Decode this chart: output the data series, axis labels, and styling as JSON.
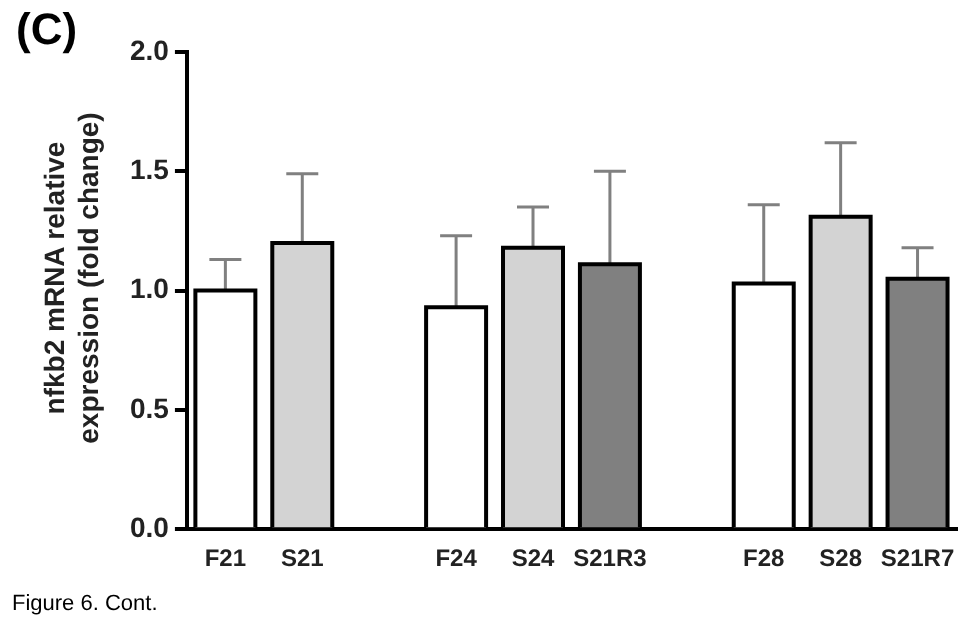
{
  "chart_data": {
    "type": "bar",
    "title": "(C)",
    "ylabel": "nfkb2 mRNA relative expression (fold change)",
    "annotations": [
      "Figure 6. Cont."
    ],
    "categories": [
      "F21",
      "S21",
      null,
      "F24",
      "S24",
      "S21R3",
      null,
      "F28",
      "S28",
      "S21R7"
    ],
    "values": [
      1.0,
      1.2,
      null,
      0.93,
      1.18,
      1.11,
      null,
      1.03,
      1.31,
      1.05
    ],
    "colors": [
      "#ffffff",
      "#d3d3d3",
      null,
      "#ffffff",
      "#d3d3d3",
      "#808080",
      null,
      "#ffffff",
      "#d3d3d3",
      "#808080"
    ],
    "errors": [
      [
        1.0,
        1.13
      ],
      [
        1.2,
        1.49
      ],
      null,
      [
        0.93,
        1.23
      ],
      [
        1.18,
        1.35
      ],
      [
        1.11,
        1.5
      ],
      null,
      [
        1.03,
        1.36
      ],
      [
        1.31,
        1.62
      ],
      [
        1.05,
        1.18
      ]
    ],
    "ylim": [
      0,
      2
    ],
    "yticks": [
      {
        "value": 0,
        "label": "0.0"
      },
      {
        "value": 0.5,
        "label": "0.5"
      },
      {
        "value": 1,
        "label": "1.0"
      },
      {
        "value": 1.5,
        "label": "1.5"
      },
      {
        "value": 2,
        "label": "2.0"
      }
    ],
    "grid": false,
    "legend": false
  }
}
